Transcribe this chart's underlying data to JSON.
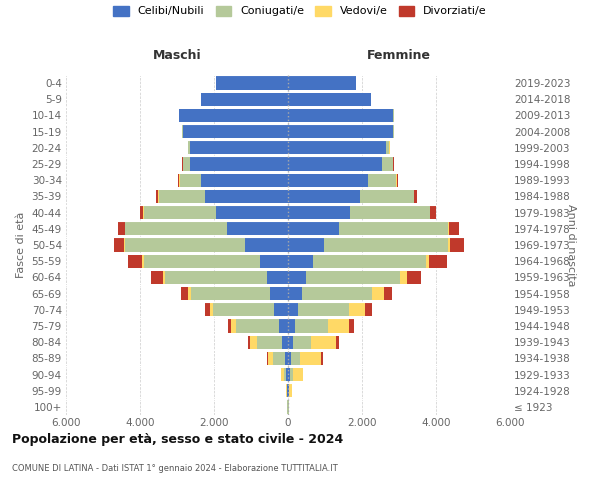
{
  "age_groups": [
    "100+",
    "95-99",
    "90-94",
    "85-89",
    "80-84",
    "75-79",
    "70-74",
    "65-69",
    "60-64",
    "55-59",
    "50-54",
    "45-49",
    "40-44",
    "35-39",
    "30-34",
    "25-29",
    "20-24",
    "15-19",
    "10-14",
    "5-9",
    "0-4"
  ],
  "birth_years": [
    "≤ 1923",
    "1924-1928",
    "1929-1933",
    "1934-1938",
    "1939-1943",
    "1944-1948",
    "1949-1953",
    "1954-1958",
    "1959-1963",
    "1964-1968",
    "1969-1973",
    "1974-1978",
    "1979-1983",
    "1984-1988",
    "1989-1993",
    "1994-1998",
    "1999-2003",
    "2004-2008",
    "2009-2013",
    "2014-2018",
    "2019-2023"
  ],
  "colors": {
    "celibi": "#4472c4",
    "coniugati": "#b5c99a",
    "vedovi": "#ffd966",
    "divorziati": "#c0392b"
  },
  "males": {
    "celibi": [
      10,
      25,
      50,
      80,
      150,
      250,
      380,
      480,
      580,
      750,
      1150,
      1650,
      1950,
      2250,
      2350,
      2650,
      2650,
      2850,
      2950,
      2350,
      1950
    ],
    "coniugati": [
      5,
      15,
      70,
      320,
      680,
      1150,
      1650,
      2150,
      2750,
      3150,
      3250,
      2750,
      1950,
      1250,
      580,
      180,
      45,
      8,
      4,
      0,
      0
    ],
    "vedovi": [
      4,
      12,
      70,
      140,
      190,
      140,
      90,
      70,
      55,
      45,
      25,
      18,
      8,
      4,
      4,
      4,
      4,
      4,
      0,
      0,
      0
    ],
    "divorziati": [
      2,
      4,
      8,
      25,
      70,
      90,
      130,
      180,
      320,
      380,
      280,
      180,
      90,
      70,
      45,
      18,
      8,
      4,
      0,
      0,
      0
    ]
  },
  "females": {
    "celibi": [
      10,
      25,
      55,
      90,
      140,
      190,
      280,
      380,
      480,
      680,
      980,
      1380,
      1680,
      1950,
      2150,
      2550,
      2650,
      2850,
      2850,
      2250,
      1850
    ],
    "coniugati": [
      4,
      15,
      70,
      230,
      480,
      880,
      1380,
      1880,
      2550,
      3050,
      3350,
      2950,
      2150,
      1450,
      780,
      280,
      90,
      8,
      4,
      0,
      0
    ],
    "vedovi": [
      8,
      70,
      280,
      580,
      680,
      580,
      430,
      330,
      190,
      90,
      55,
      25,
      18,
      8,
      4,
      4,
      4,
      0,
      0,
      0,
      0
    ],
    "divorziati": [
      2,
      4,
      8,
      35,
      90,
      140,
      190,
      230,
      380,
      480,
      380,
      260,
      140,
      70,
      35,
      18,
      8,
      4,
      0,
      0,
      0
    ]
  },
  "title": "Popolazione per età, sesso e stato civile - 2024",
  "subtitle": "COMUNE DI LATINA - Dati ISTAT 1° gennaio 2024 - Elaborazione TUTTITALIA.IT",
  "xlabel_left": "Maschi",
  "xlabel_right": "Femmine",
  "ylabel_left": "Fasce di età",
  "ylabel_right": "Anni di nascita",
  "legend_labels": [
    "Celibi/Nubili",
    "Coniugati/e",
    "Vedovi/e",
    "Divorziati/e"
  ],
  "xlim": 6000,
  "xtick_vals": [
    -6000,
    -4000,
    -2000,
    0,
    2000,
    4000,
    6000
  ],
  "xtick_labels": [
    "6.000",
    "4.000",
    "2.000",
    "0",
    "2.000",
    "4.000",
    "6.000"
  ],
  "background_color": "#ffffff",
  "grid_color": "#cccccc"
}
